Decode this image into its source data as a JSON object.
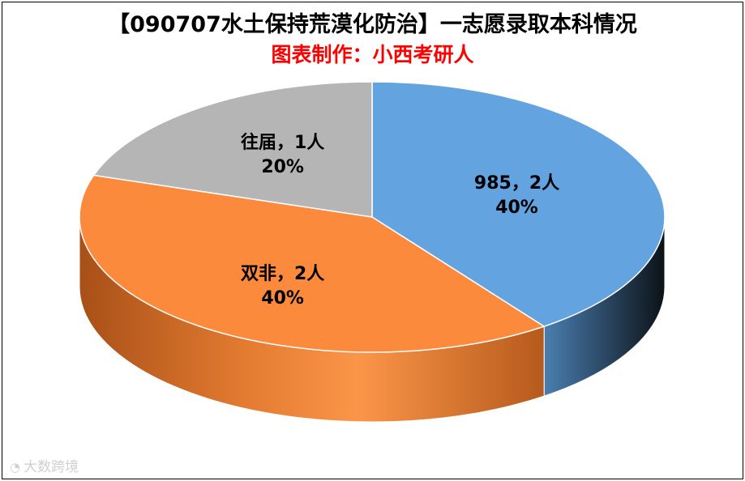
{
  "title": "【090707水土保持荒漠化防治】一志愿录取本科情况",
  "subtitle": "图表制作：小西考研人",
  "watermark": {
    "text": "大数跨境",
    "icon": "chat-bubble-icon"
  },
  "chart_data": {
    "type": "pie",
    "style": "3d",
    "slices": [
      {
        "label": "985，2人",
        "value": 2,
        "percent": "40%",
        "color": "#62a3e0",
        "side_color": "#3a6a96"
      },
      {
        "label": "双非，2人",
        "value": 2,
        "percent": "40%",
        "color": "#fb8a3c",
        "side_color": "#c6601e"
      },
      {
        "label": "往届，1人",
        "value": 1,
        "percent": "20%",
        "color": "#b5b5b5",
        "side_color": "#8a8a8a"
      }
    ]
  }
}
